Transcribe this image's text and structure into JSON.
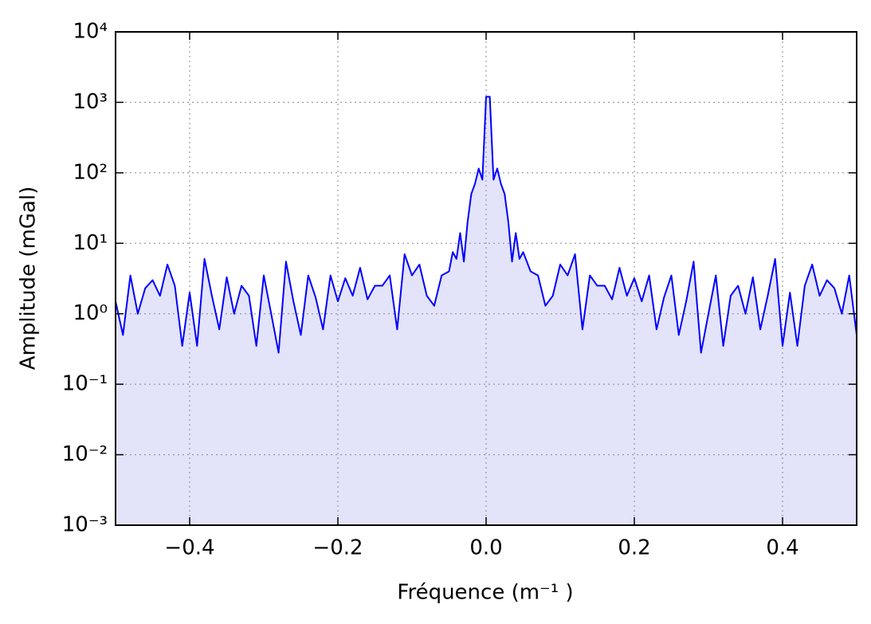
{
  "chart_data": {
    "type": "line",
    "xlabel": "Fréquence (m⁻¹ )",
    "ylabel": "Amplitude (mGal)",
    "x": [
      -0.5,
      -0.49,
      -0.48,
      -0.47,
      -0.46,
      -0.45,
      -0.44,
      -0.43,
      -0.42,
      -0.41,
      -0.4,
      -0.39,
      -0.38,
      -0.37,
      -0.36,
      -0.35,
      -0.34,
      -0.33,
      -0.32,
      -0.31,
      -0.3,
      -0.29,
      -0.28,
      -0.27,
      -0.26,
      -0.25,
      -0.24,
      -0.23,
      -0.22,
      -0.21,
      -0.2,
      -0.19,
      -0.18,
      -0.17,
      -0.16,
      -0.15,
      -0.14,
      -0.13,
      -0.12,
      -0.11,
      -0.1,
      -0.09,
      -0.08,
      -0.07,
      -0.06,
      -0.05,
      -0.045,
      -0.04,
      -0.035,
      -0.03,
      -0.025,
      -0.02,
      -0.015,
      -0.01,
      -0.005,
      0,
      0.005,
      0.01,
      0.015,
      0.02,
      0.025,
      0.03,
      0.035,
      0.04,
      0.045,
      0.05,
      0.06,
      0.07,
      0.08,
      0.09,
      0.1,
      0.11,
      0.12,
      0.13,
      0.14,
      0.15,
      0.16,
      0.17,
      0.18,
      0.19,
      0.2,
      0.21,
      0.22,
      0.23,
      0.24,
      0.25,
      0.26,
      0.27,
      0.28,
      0.29,
      0.3,
      0.31,
      0.32,
      0.33,
      0.34,
      0.35,
      0.36,
      0.37,
      0.38,
      0.39,
      0.4,
      0.41,
      0.42,
      0.43,
      0.44,
      0.45,
      0.46,
      0.47,
      0.48,
      0.49,
      0.5
    ],
    "series": [
      {
        "color": "#0000ff",
        "fill_color": "#e3e3fa",
        "values": [
          1.5,
          0.5,
          3.5,
          1.0,
          2.3,
          3.0,
          1.8,
          5,
          2.5,
          0.35,
          2.0,
          0.35,
          6,
          1.8,
          0.6,
          3.3,
          1.0,
          2.5,
          1.8,
          0.35,
          3.5,
          1.0,
          0.28,
          5.5,
          1.5,
          0.5,
          3.5,
          1.7,
          0.6,
          3.5,
          1.5,
          3.2,
          1.8,
          4.5,
          1.6,
          2.5,
          2.5,
          3.5,
          0.6,
          7,
          3.5,
          5,
          1.8,
          1.3,
          3.5,
          4,
          7.5,
          6,
          14,
          5.5,
          20,
          50,
          70,
          115,
          80,
          1200,
          1200,
          80,
          115,
          70,
          50,
          20,
          5.5,
          14,
          6,
          7.5,
          4,
          3.5,
          1.3,
          1.8,
          5,
          3.5,
          7,
          0.6,
          3.5,
          2.5,
          2.5,
          1.6,
          4.5,
          1.8,
          3.2,
          1.5,
          3.5,
          0.6,
          1.7,
          3.5,
          0.5,
          1.5,
          5.5,
          0.28,
          1.0,
          3.5,
          0.35,
          1.8,
          2.5,
          1.0,
          3.3,
          0.6,
          1.8,
          6,
          0.35,
          2.0,
          0.35,
          2.5,
          5,
          1.8,
          3.0,
          2.3,
          1.0,
          3.5,
          0.5
        ]
      }
    ],
    "xlim": [
      -0.5,
      0.5
    ],
    "ylim": [
      0.001,
      10000
    ],
    "yscale": "log",
    "grid": true,
    "xticks": [
      {
        "value": -0.4,
        "label": "−0.4"
      },
      {
        "value": -0.2,
        "label": "−0.2"
      },
      {
        "value": 0,
        "label": "0.0"
      },
      0.2,
      0.4
    ],
    "yticks": [
      {
        "value": 0.001,
        "label": "10⁻³"
      },
      {
        "value": 0.01,
        "label": "10⁻²"
      },
      {
        "value": 0.1,
        "label": "10⁻¹"
      },
      {
        "value": 1,
        "label": "10⁰"
      },
      {
        "value": 10,
        "label": "10¹"
      },
      {
        "value": 100,
        "label": "10²"
      },
      {
        "value": 1000,
        "label": "10³"
      },
      {
        "value": 10000,
        "label": "10⁴"
      }
    ]
  }
}
